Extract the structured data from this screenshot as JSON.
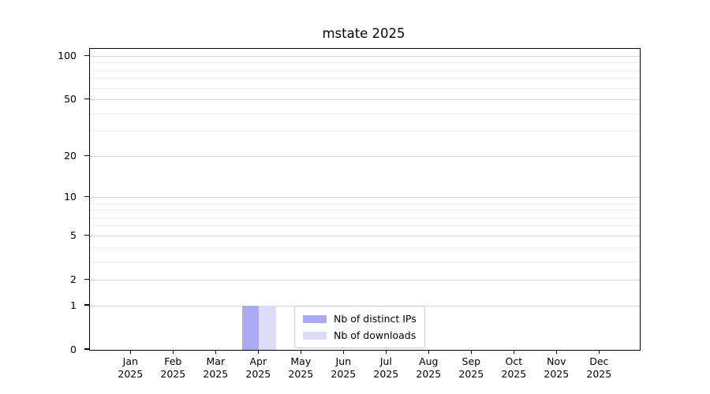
{
  "chart_data": {
    "type": "bar",
    "title": "mstate 2025",
    "year_label": "2025",
    "categories": [
      "Jan",
      "Feb",
      "Mar",
      "Apr",
      "May",
      "Jun",
      "Jul",
      "Aug",
      "Sep",
      "Oct",
      "Nov",
      "Dec"
    ],
    "series": [
      {
        "key": "distinct-ips",
        "name": "Nb of distinct IPs",
        "color": "#a9a9f4",
        "values": [
          0,
          0,
          0,
          1,
          0,
          0,
          0,
          0,
          0,
          0,
          0,
          0
        ]
      },
      {
        "key": "downloads",
        "name": "Nb of downloads",
        "color": "#dcdcf8",
        "values": [
          0,
          0,
          0,
          1,
          0,
          0,
          0,
          0,
          0,
          0,
          0,
          0
        ]
      }
    ],
    "xlabel": "",
    "ylabel": "",
    "y_scale": "log1p",
    "y_ticks": [
      0,
      1,
      2,
      5,
      10,
      20,
      50,
      100
    ],
    "y_minor_ticks": [
      3,
      4,
      6,
      7,
      8,
      9,
      30,
      40,
      60,
      70,
      80,
      90
    ],
    "ylim": [
      0,
      113
    ],
    "grid": "horizontal",
    "legend": {
      "position": "lower center",
      "entries": [
        "Nb of distinct IPs",
        "Nb of downloads"
      ]
    },
    "colors": {
      "grid_major": "#d4d4d4",
      "grid_minor": "#ececec",
      "spine": "#000000",
      "legend_border": "#cccccc",
      "background": "#ffffff"
    }
  }
}
